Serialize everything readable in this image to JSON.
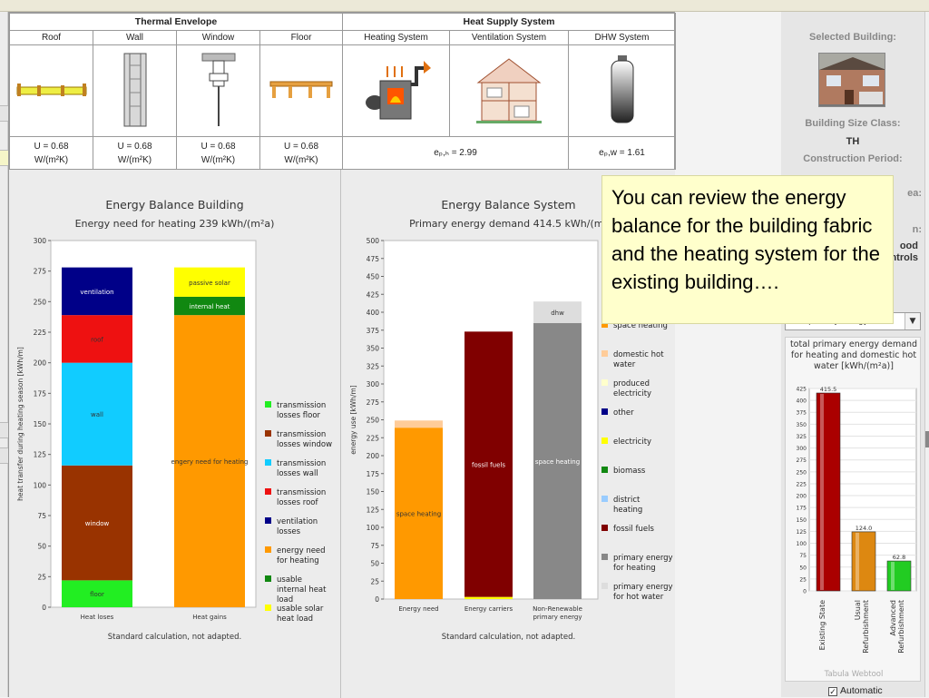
{
  "envelope": {
    "header": "Thermal Envelope",
    "columns": [
      "Roof",
      "Wall",
      "Window",
      "Floor"
    ],
    "u_values": [
      "U = 0.68",
      "U = 0.68",
      "U = 0.68",
      "U = 0.68"
    ],
    "unit": "W/(m²K)"
  },
  "supply": {
    "header": "Heat Supply System",
    "columns": [
      "Heating System",
      "Ventilation System",
      "DHW System"
    ],
    "ep_h": "eₚ,ₕ = 2.99",
    "ep_w": "eₚ,w = 1.61"
  },
  "left_chart": {
    "title": "Energy Balance Building",
    "subtitle": "Energy need for heating 239 kWh/(m²a)",
    "ylabel": "heat transfer during heating season [kWh/m]",
    "footer": "Standard calculation, not adapted."
  },
  "right_chart": {
    "title": "Energy Balance System",
    "subtitle": "Primary energy demand 414.5 kWh/(m²",
    "ylabel": "energy use [kWh/m]",
    "footer": "Standard calculation, not adapted."
  },
  "chart_data": [
    {
      "type": "bar",
      "stacked": true,
      "categories": [
        "Heat loses",
        "Heat gains"
      ],
      "ylim": [
        0,
        300
      ],
      "yticks": [
        0,
        25,
        50,
        75,
        100,
        125,
        150,
        175,
        200,
        225,
        250,
        275,
        300
      ],
      "series": [
        {
          "name": "floor",
          "color": "#22ee22",
          "values": [
            22,
            0
          ]
        },
        {
          "name": "window",
          "color": "#993300",
          "values": [
            94,
            0
          ]
        },
        {
          "name": "wall",
          "color": "#11ccff",
          "values": [
            84,
            0
          ]
        },
        {
          "name": "roof",
          "color": "#ee1111",
          "values": [
            39,
            0
          ]
        },
        {
          "name": "ventilation",
          "color": "#000088",
          "values": [
            39,
            0
          ]
        },
        {
          "name": "engery need for heating",
          "color": "#ff9900",
          "values": [
            0,
            239
          ]
        },
        {
          "name": "internal heat",
          "color": "#118811",
          "values": [
            0,
            15
          ]
        },
        {
          "name": "passive solar",
          "color": "#ffff00",
          "values": [
            0,
            24
          ]
        }
      ],
      "legend": [
        {
          "label": "transmission losses floor",
          "color": "#22ee22"
        },
        {
          "label": "transmission losses window",
          "color": "#993300"
        },
        {
          "label": "transmission losses wall",
          "color": "#11ccff"
        },
        {
          "label": "transmission losses roof",
          "color": "#ee1111"
        },
        {
          "label": "ventilation losses",
          "color": "#000088"
        },
        {
          "label": "energy need for heating",
          "color": "#ff9900"
        },
        {
          "label": "usable internal heat load",
          "color": "#118811"
        },
        {
          "label": "usable solar heat load",
          "color": "#ffff00"
        }
      ]
    },
    {
      "type": "bar",
      "stacked": true,
      "categories": [
        "Energy need",
        "Energy carriers",
        "Non-Renewable primary energy"
      ],
      "ylim": [
        0,
        500
      ],
      "yticks": [
        0,
        25,
        50,
        75,
        100,
        125,
        150,
        175,
        200,
        225,
        250,
        275,
        300,
        325,
        350,
        375,
        400,
        425,
        450,
        475,
        500
      ],
      "series": [
        {
          "name": "space heating",
          "color": "#ff9900",
          "values": [
            239,
            0,
            0
          ]
        },
        {
          "name": "dhw",
          "color": "#ffcc99",
          "values": [
            10,
            0,
            0
          ]
        },
        {
          "name": "electricity",
          "color": "#ffff00",
          "values": [
            0,
            3,
            0
          ]
        },
        {
          "name": "fossil fuels",
          "color": "#800000",
          "values": [
            0,
            370,
            0
          ]
        },
        {
          "name": "space heating",
          "color": "#888888",
          "values": [
            0,
            0,
            385
          ]
        },
        {
          "name": "dhw",
          "color": "#dddddd",
          "values": [
            0,
            0,
            30
          ]
        }
      ],
      "legend": [
        {
          "label": "space heating",
          "color": "#ff9900"
        },
        {
          "label": "domestic hot water",
          "color": "#ffcc99"
        },
        {
          "label": "produced electricity",
          "color": "#ffffcc"
        },
        {
          "label": "other",
          "color": "#000088"
        },
        {
          "label": "electricity",
          "color": "#ffff00"
        },
        {
          "label": "biomass",
          "color": "#118811"
        },
        {
          "label": "district heating",
          "color": "#99ccff"
        },
        {
          "label": "fossil fuels",
          "color": "#800000"
        },
        {
          "label": "primary energy for heating",
          "color": "#888888"
        },
        {
          "label": "primary energy for hot water",
          "color": "#dddddd"
        }
      ]
    },
    {
      "type": "bar",
      "title": "total primary energy demand for heating and domestic hot water [kWh/(m²a)]",
      "categories": [
        "Existing State",
        "Usual Refurbishment",
        "Advanced Refurbishment"
      ],
      "values": [
        415.5,
        124.0,
        62.8
      ],
      "labels": [
        "415.5",
        "124.0",
        "62.8"
      ],
      "colors": [
        "#aa0000",
        "#dd8811",
        "#22cc22"
      ],
      "ylim": [
        0,
        425
      ],
      "yticks": [
        0,
        25,
        50,
        75,
        100,
        125,
        150,
        175,
        200,
        225,
        250,
        275,
        300,
        325,
        350,
        375,
        400,
        425
      ],
      "footer": "Tabula Webtool"
    }
  ],
  "sidebar": {
    "selected_building_label": "Selected Building:",
    "size_class_label": "Building Size Class:",
    "size_class_value": "TH",
    "construction_period_label": "Construction Period:",
    "partial_a": "ea:",
    "partial_b": "n:",
    "partial_c": "ood",
    "partial_d": "ntrols",
    "select_value": "total primary energy",
    "automatic_label": "Automatic"
  },
  "callout": {
    "text": "You can review the energy balance for the building fabric and the heating system for the existing building…."
  }
}
